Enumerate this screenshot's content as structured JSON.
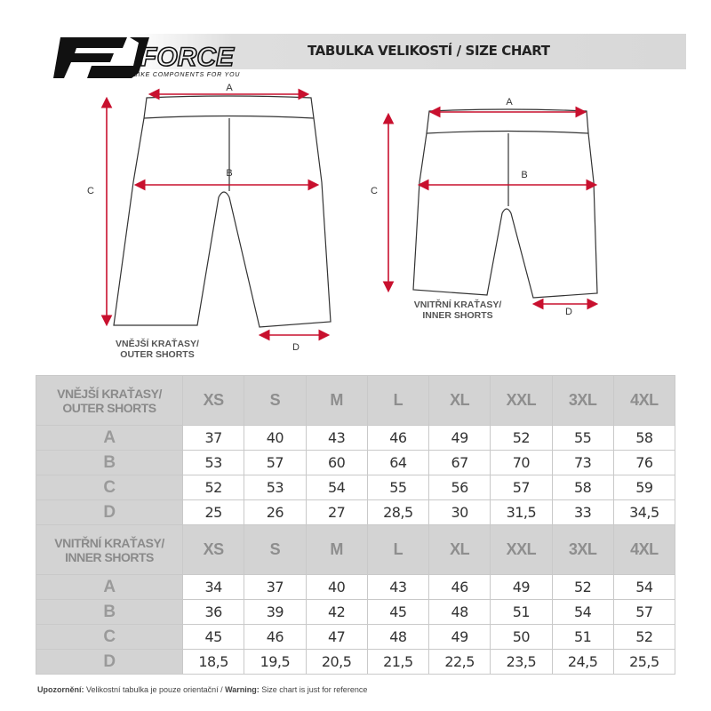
{
  "brand": {
    "name": "FORCE",
    "tagline": "BIKE COMPONENTS FOR YOU"
  },
  "title": "TABULKA VELIKOSTÍ / SIZE CHART",
  "accent_color": "#c8102e",
  "diagrams": {
    "outer": {
      "label1": "VNĚJŠÍ KRAŤASY/",
      "label2": "OUTER SHORTS",
      "A": "A",
      "B": "B",
      "C": "C",
      "D": "D"
    },
    "inner": {
      "label1": "VNITŘNÍ KRAŤASY/",
      "label2": "INNER SHORTS",
      "A": "A",
      "B": "B",
      "C": "C",
      "D": "D"
    }
  },
  "sizes": [
    "XS",
    "S",
    "M",
    "L",
    "XL",
    "XXL",
    "3XL",
    "4XL"
  ],
  "outer": {
    "header1": "VNĚJŠÍ KRAŤASY/",
    "header2": "OUTER SHORTS",
    "rows": [
      {
        "label": "A",
        "values": [
          "37",
          "40",
          "43",
          "46",
          "49",
          "52",
          "55",
          "58"
        ]
      },
      {
        "label": "B",
        "values": [
          "53",
          "57",
          "60",
          "64",
          "67",
          "70",
          "73",
          "76"
        ]
      },
      {
        "label": "C",
        "values": [
          "52",
          "53",
          "54",
          "55",
          "56",
          "57",
          "58",
          "59"
        ]
      },
      {
        "label": "D",
        "values": [
          "25",
          "26",
          "27",
          "28,5",
          "30",
          "31,5",
          "33",
          "34,5"
        ]
      }
    ]
  },
  "inner": {
    "header1": "VNITŘNÍ KRAŤASY/",
    "header2": "INNER SHORTS",
    "rows": [
      {
        "label": "A",
        "values": [
          "34",
          "37",
          "40",
          "43",
          "46",
          "49",
          "52",
          "54"
        ]
      },
      {
        "label": "B",
        "values": [
          "36",
          "39",
          "42",
          "45",
          "48",
          "51",
          "54",
          "57"
        ]
      },
      {
        "label": "C",
        "values": [
          "45",
          "46",
          "47",
          "48",
          "49",
          "50",
          "51",
          "52"
        ]
      },
      {
        "label": "D",
        "values": [
          "18,5",
          "19,5",
          "20,5",
          "21,5",
          "22,5",
          "23,5",
          "24,5",
          "25,5"
        ]
      }
    ]
  },
  "footer": {
    "warn_cz_label": "Upozornění:",
    "warn_cz": " Velikostní tabulka je pouze orientační / ",
    "warn_en_label": "Warning:",
    "warn_en": " Size chart is just for reference"
  }
}
